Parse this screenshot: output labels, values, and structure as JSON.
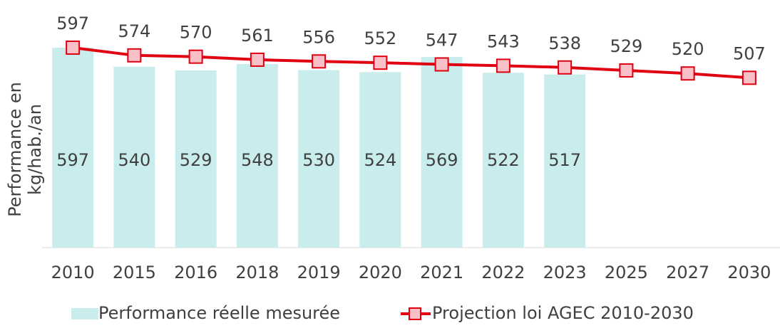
{
  "chart_data": {
    "type": "bar_line",
    "y_label": [
      "Performance en",
      "kg/hab./an"
    ],
    "categories": [
      "2010",
      "2015",
      "2016",
      "2018",
      "2019",
      "2020",
      "2021",
      "2022",
      "2023",
      "2025",
      "2027",
      "2030"
    ],
    "ylim": [
      0,
      700
    ],
    "series": [
      {
        "name": "Performance réelle mesurée",
        "type": "bar",
        "color": "#c9ecec",
        "values": [
          597,
          540,
          529,
          548,
          530,
          524,
          569,
          522,
          517,
          null,
          null,
          null
        ]
      },
      {
        "name": "Projection loi AGEC 2010-2030",
        "type": "line",
        "color": "#e00012",
        "marker_color": "#f9c0c8",
        "values": [
          597,
          574,
          570,
          561,
          556,
          552,
          547,
          543,
          538,
          529,
          520,
          507
        ]
      }
    ]
  }
}
